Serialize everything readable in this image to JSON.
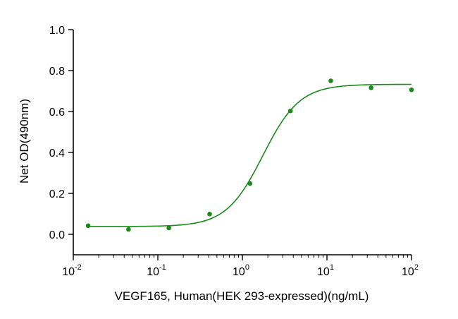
{
  "chart_data": {
    "type": "scatter",
    "xlabel": "VEGF165, Human(HEK 293-expressed)(ng/mL)",
    "ylabel": "Net OD(490nm)",
    "x_scale": "log",
    "xlim": [
      0.01,
      100
    ],
    "ylim": [
      -0.1,
      1.0
    ],
    "x_ticks": [
      {
        "base": "10",
        "exp": "-2",
        "value": 0.01
      },
      {
        "base": "10",
        "exp": "-1",
        "value": 0.1
      },
      {
        "base": "10",
        "exp": "0",
        "value": 1
      },
      {
        "base": "10",
        "exp": "1",
        "value": 10
      },
      {
        "base": "10",
        "exp": "2",
        "value": 100
      }
    ],
    "y_ticks": [
      {
        "label": "0.0",
        "value": 0.0
      },
      {
        "label": "0.2",
        "value": 0.2
      },
      {
        "label": "0.4",
        "value": 0.4
      },
      {
        "label": "0.6",
        "value": 0.6
      },
      {
        "label": "0.8",
        "value": 0.8
      },
      {
        "label": "1.0",
        "value": 1.0
      }
    ],
    "color": "#1a8a1a",
    "series": [
      {
        "x": [
          0.015,
          0.045,
          0.135,
          0.41,
          1.23,
          3.7,
          11.1,
          33.3,
          100
        ],
        "y": [
          0.042,
          0.024,
          0.031,
          0.099,
          0.248,
          0.603,
          0.75,
          0.716,
          0.706
        ]
      }
    ],
    "fit": {
      "model": "4PL",
      "bottom": 0.038,
      "top": 0.733,
      "ec50": 1.75,
      "hill": 2.0
    },
    "grid": false,
    "legend": false
  }
}
